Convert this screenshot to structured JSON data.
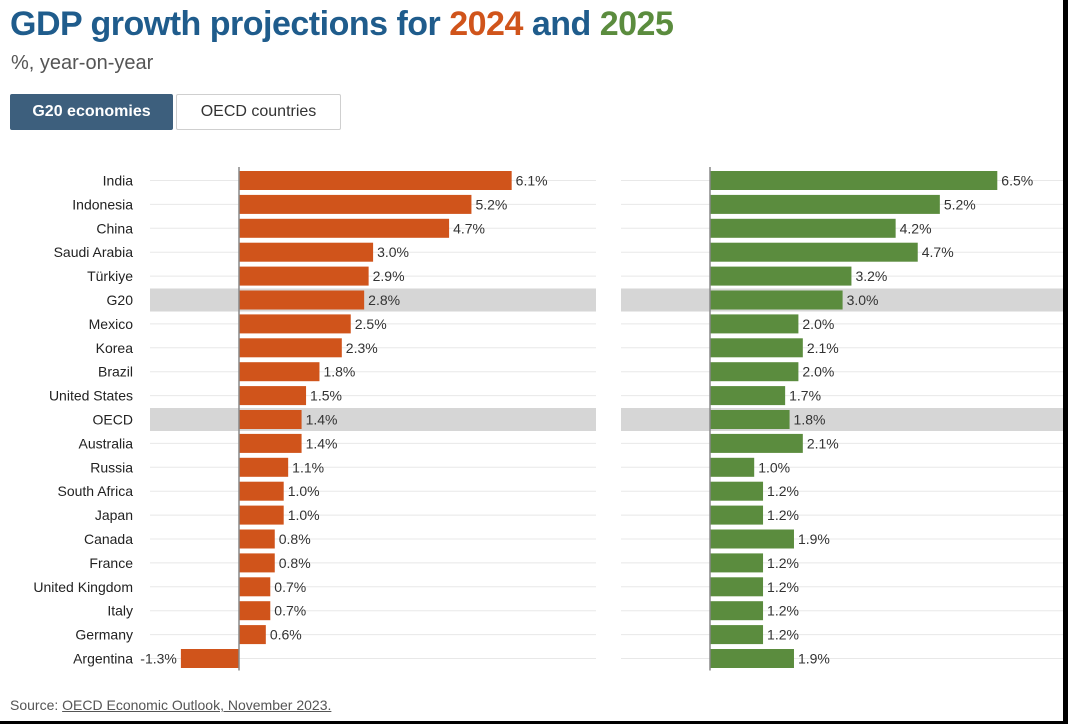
{
  "header": {
    "title_prefix": "GDP growth projections for ",
    "title_year1": "2024",
    "title_mid": " and ",
    "title_year2": "2025",
    "subtitle": "%, year-on-year",
    "year1_color": "#d0541b",
    "year2_color": "#5b8c3e",
    "title_color": "#1f5c8c"
  },
  "tabs": [
    {
      "label": "G20 economies",
      "active": true
    },
    {
      "label": "OECD countries",
      "active": false
    }
  ],
  "source": {
    "prefix": "Source: ",
    "link": "OECD Economic Outlook, November 2023."
  },
  "chart_data": {
    "type": "bar",
    "orientation": "horizontal",
    "categories": [
      "India",
      "Indonesia",
      "China",
      "Saudi Arabia",
      "Türkiye",
      "G20",
      "Mexico",
      "Korea",
      "Brazil",
      "United States",
      "OECD",
      "Australia",
      "Russia",
      "South Africa",
      "Japan",
      "Canada",
      "France",
      "United Kingdom",
      "Italy",
      "Germany",
      "Argentina"
    ],
    "highlighted": [
      "G20",
      "OECD"
    ],
    "series": [
      {
        "name": "2024",
        "color": "#d0541b",
        "values": [
          6.1,
          5.2,
          4.7,
          3.0,
          2.9,
          2.8,
          2.5,
          2.3,
          1.8,
          1.5,
          1.4,
          1.4,
          1.1,
          1.0,
          1.0,
          0.8,
          0.8,
          0.7,
          0.7,
          0.6,
          -1.3
        ]
      },
      {
        "name": "2025",
        "color": "#5b8c3e",
        "values": [
          6.5,
          5.2,
          4.2,
          4.7,
          3.2,
          3.0,
          2.0,
          2.1,
          2.0,
          1.7,
          1.8,
          2.1,
          1.0,
          1.2,
          1.2,
          1.9,
          1.2,
          1.2,
          1.2,
          1.2,
          1.9
        ]
      }
    ],
    "value_suffix": "%",
    "grid": true,
    "legend": "none"
  }
}
